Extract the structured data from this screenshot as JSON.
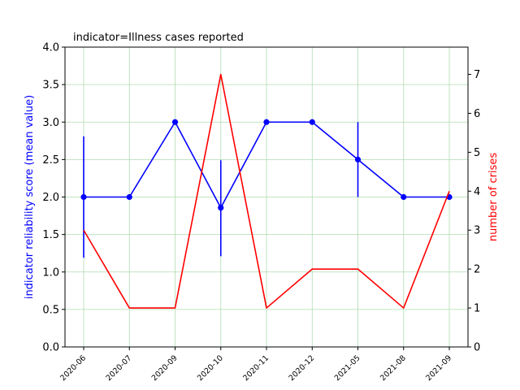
{
  "chart_data": {
    "type": "line",
    "title": "indicator=Illness cases reported",
    "categories": [
      "2020-06",
      "2020-07",
      "2020-09",
      "2020-10",
      "2020-11",
      "2020-12",
      "2021-05",
      "2021-08",
      "2021-09"
    ],
    "ylabel_left": "indicator reliability score (mean value)",
    "ylabel_right": "number of crises",
    "ylim_left": [
      0,
      4
    ],
    "ylim_right": [
      0,
      7.7
    ],
    "yticks_left": [
      "0.0",
      "0.5",
      "1.0",
      "1.5",
      "2.0",
      "2.5",
      "3.0",
      "3.5",
      "4.0"
    ],
    "yticks_right": [
      "0",
      "1",
      "2",
      "3",
      "4",
      "5",
      "6",
      "7"
    ],
    "grid": true,
    "series": [
      {
        "axis": "left",
        "color": "#0000ff",
        "marker": "circle",
        "values": [
          2.0,
          2.0,
          3.0,
          1.857,
          3.0,
          3.0,
          2.5,
          2.0,
          2.0
        ],
        "error_low": [
          1.19,
          null,
          null,
          1.21,
          null,
          null,
          2.0,
          null,
          null
        ],
        "error_high": [
          2.81,
          null,
          null,
          2.49,
          null,
          null,
          3.0,
          null,
          null
        ]
      },
      {
        "axis": "right",
        "color": "#ff0000",
        "marker": "none",
        "values": [
          3,
          1,
          1,
          7,
          1,
          2,
          2,
          1,
          4
        ]
      }
    ]
  }
}
